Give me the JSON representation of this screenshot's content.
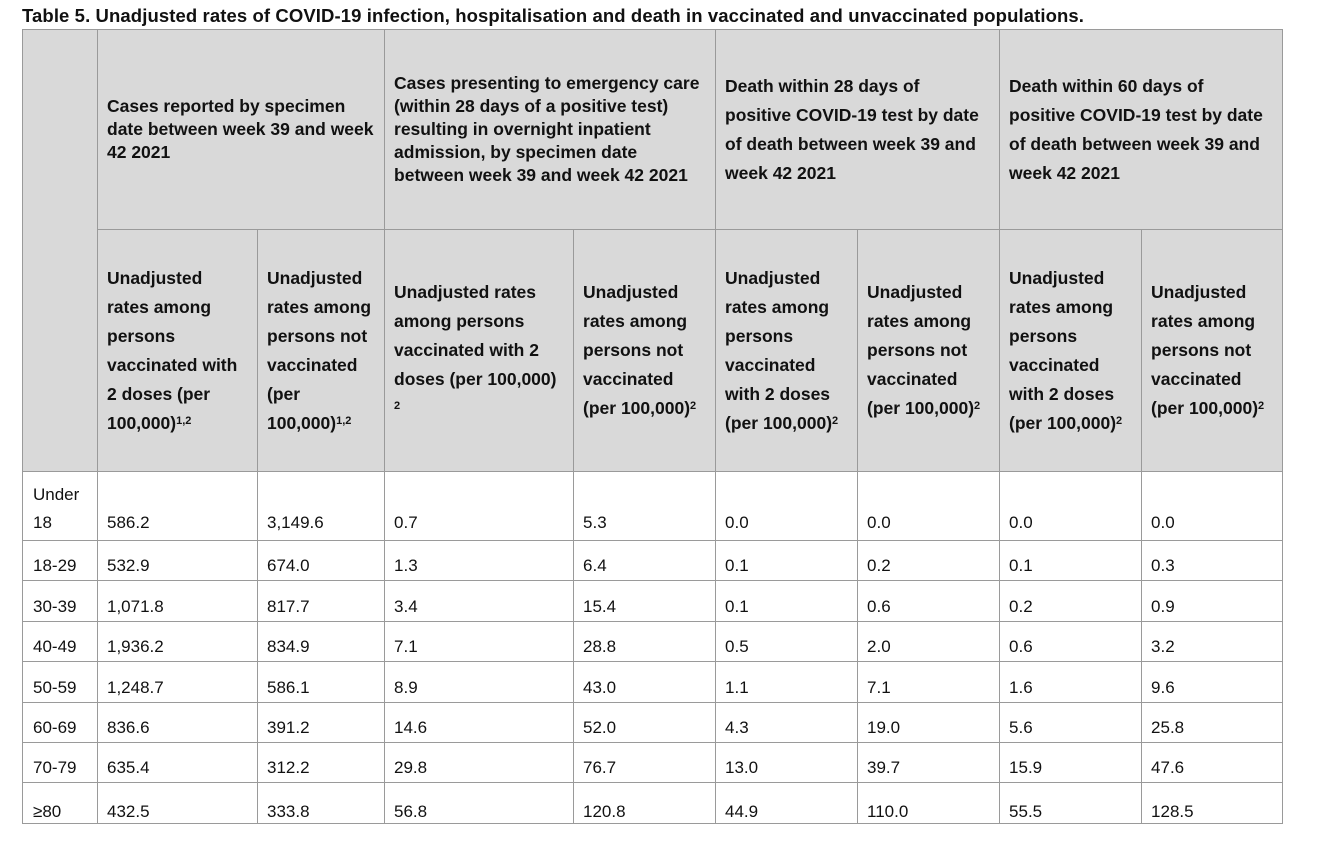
{
  "title": "Table 5. Unadjusted rates of COVID-19 infection, hospitalisation and death in vaccinated and unvaccinated populations.",
  "group_headers": [
    "Cases reported by specimen date between week 39 and week 42 2021",
    "Cases presenting to emergency care (within 28 days of a positive test) resulting in overnight inpatient admission, by specimen date between week 39 and week 42 2021",
    "Death within 28 days of positive COVID-19 test by date of death between week 39 and week 42 2021",
    "Death within 60 days of positive COVID-19 test by date of death between week 39 and week 42 2021"
  ],
  "sub_headers": [
    {
      "text": "Unadjusted rates among persons vaccinated with 2 doses (per 100,000)",
      "sup": "1,2"
    },
    {
      "text": "Unadjusted rates among persons not vaccinated (per 100,000)",
      "sup": "1,2"
    },
    {
      "text": "Unadjusted rates among persons vaccinated with 2 doses (per 100,000)",
      "sup": " 2"
    },
    {
      "text": "Unadjusted rates among persons not vaccinated (per 100,000)",
      "sup": "2"
    },
    {
      "text": "Unadjusted rates among persons vaccinated with 2 doses (per 100,000)",
      "sup": "2"
    },
    {
      "text": "Unadjusted rates among persons not vaccinated (per 100,000)",
      "sup": "2"
    },
    {
      "text": "Unadjusted rates among persons vaccinated with 2 doses (per 100,000)",
      "sup": "2"
    },
    {
      "text": "Unadjusted rates among persons not vaccinated (per 100,000)",
      "sup": "2"
    }
  ],
  "rows": [
    {
      "age": "Under 18",
      "values": [
        "586.2",
        "3,149.6",
        "0.7",
        "5.3",
        "0.0",
        "0.0",
        "0.0",
        "0.0"
      ]
    },
    {
      "age": "18-29",
      "values": [
        "532.9",
        "674.0",
        "1.3",
        "6.4",
        "0.1",
        "0.2",
        "0.1",
        "0.3"
      ]
    },
    {
      "age": "30-39",
      "values": [
        "1,071.8",
        "817.7",
        "3.4",
        "15.4",
        "0.1",
        "0.6",
        "0.2",
        "0.9"
      ]
    },
    {
      "age": "40-49",
      "values": [
        "1,936.2",
        "834.9",
        "7.1",
        "28.8",
        "0.5",
        "2.0",
        "0.6",
        "3.2"
      ]
    },
    {
      "age": "50-59",
      "values": [
        "1,248.7",
        "586.1",
        "8.9",
        "43.0",
        "1.1",
        "7.1",
        "1.6",
        "9.6"
      ]
    },
    {
      "age": "60-69",
      "values": [
        "836.6",
        "391.2",
        "14.6",
        "52.0",
        "4.3",
        "19.0",
        "5.6",
        "25.8"
      ]
    },
    {
      "age": "70-79",
      "values": [
        "635.4",
        "312.2",
        "29.8",
        "76.7",
        "13.0",
        "39.7",
        "15.9",
        "47.6"
      ]
    },
    {
      "age": "≥80",
      "values": [
        "432.5",
        "333.8",
        "56.8",
        "120.8",
        "44.9",
        "110.0",
        "55.5",
        "128.5"
      ]
    }
  ]
}
